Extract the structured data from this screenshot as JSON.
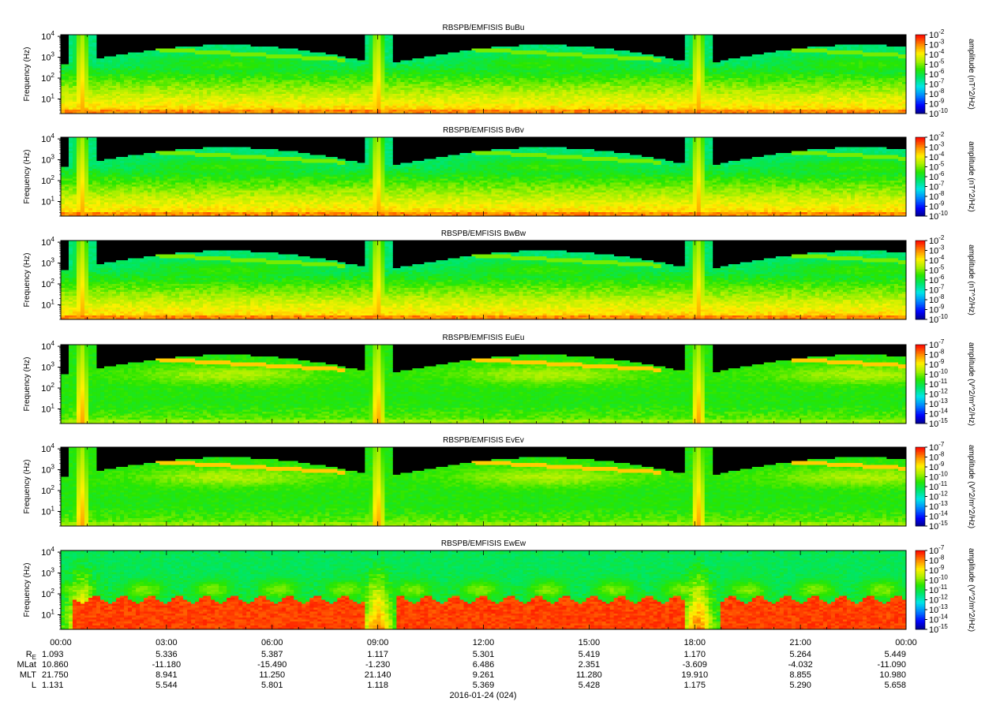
{
  "chart_data": [
    {
      "type": "heatmap",
      "title": "RBSPB/EMFISIS  BuBu",
      "ylabel": "Frequency (Hz)",
      "ytick_exponents": [
        1,
        2,
        3,
        4
      ],
      "ylim": [
        2,
        12000
      ],
      "yscale": "log",
      "colorbar_label": "amplitude (nT^2/Hz)",
      "colorbar_exponents": [
        -10,
        -9,
        -8,
        -7,
        -6,
        -5,
        -4,
        -3,
        -2
      ],
      "colormap": "rainbow",
      "kind": "magnetic"
    },
    {
      "type": "heatmap",
      "title": "RBSPB/EMFISIS  BvBv",
      "ylabel": "Frequency (Hz)",
      "ytick_exponents": [
        1,
        2,
        3,
        4
      ],
      "ylim": [
        2,
        12000
      ],
      "yscale": "log",
      "colorbar_label": "amplitude (nT^2/Hz)",
      "colorbar_exponents": [
        -10,
        -9,
        -8,
        -7,
        -6,
        -5,
        -4,
        -3,
        -2
      ],
      "colormap": "rainbow",
      "kind": "magnetic"
    },
    {
      "type": "heatmap",
      "title": "RBSPB/EMFISIS  BwBw",
      "ylabel": "Frequency (Hz)",
      "ytick_exponents": [
        1,
        2,
        3,
        4
      ],
      "ylim": [
        2,
        12000
      ],
      "yscale": "log",
      "colorbar_label": "amplitude (nT^2/Hz)",
      "colorbar_exponents": [
        -10,
        -9,
        -8,
        -7,
        -6,
        -5,
        -4,
        -3,
        -2
      ],
      "colormap": "rainbow",
      "kind": "magnetic"
    },
    {
      "type": "heatmap",
      "title": "RBSPB/EMFISIS  EuEu",
      "ylabel": "Frequency (Hz)",
      "ytick_exponents": [
        1,
        2,
        3,
        4
      ],
      "ylim": [
        2,
        12000
      ],
      "yscale": "log",
      "colorbar_label": "amplitude (V^2/m^2/Hz)",
      "colorbar_exponents": [
        -15,
        -14,
        -13,
        -12,
        -11,
        -10,
        -9,
        -8,
        -7
      ],
      "colormap": "rainbow",
      "kind": "electric"
    },
    {
      "type": "heatmap",
      "title": "RBSPB/EMFISIS  EvEv",
      "ylabel": "Frequency (Hz)",
      "ytick_exponents": [
        1,
        2,
        3,
        4
      ],
      "ylim": [
        2,
        12000
      ],
      "yscale": "log",
      "colorbar_label": "amplitude (V^2/m^2/Hz)",
      "colorbar_exponents": [
        -15,
        -14,
        -13,
        -12,
        -11,
        -10,
        -9,
        -8,
        -7
      ],
      "colormap": "rainbow",
      "kind": "electric"
    },
    {
      "type": "heatmap",
      "title": "RBSPB/EMFISIS  EwEw",
      "ylabel": "Frequency (Hz)",
      "ytick_exponents": [
        1,
        2,
        3,
        4
      ],
      "ylim": [
        2,
        12000
      ],
      "yscale": "log",
      "colorbar_label": "amplitude (V^2/m^2/Hz)",
      "colorbar_exponents": [
        -15,
        -14,
        -13,
        -12,
        -11,
        -10,
        -9,
        -8,
        -7
      ],
      "colormap": "rainbow",
      "kind": "electric_w"
    }
  ],
  "time_axis": {
    "tick_labels": [
      "00:00",
      "03:00",
      "06:00",
      "09:00",
      "12:00",
      "15:00",
      "18:00",
      "21:00",
      "00:00"
    ],
    "minor_ticks_per_major": 3,
    "date_label": "2016-01-24 (024)"
  },
  "ephemeris": {
    "rows": [
      {
        "label_main": "R",
        "label_sub": "E",
        "values": [
          "1.093",
          "5.336",
          "5.387",
          "1.117",
          "5.301",
          "5.419",
          "1.170",
          "5.264",
          "5.449"
        ]
      },
      {
        "label_main": "MLat",
        "label_sub": "",
        "values": [
          "10.860",
          "-11.180",
          "-15.490",
          "-1.230",
          "6.486",
          "2.351",
          "-3.609",
          "-4.032",
          "-11.090"
        ]
      },
      {
        "label_main": "MLT",
        "label_sub": "",
        "values": [
          "21.750",
          "8.941",
          "11.250",
          "21.140",
          "9.261",
          "11.280",
          "19.910",
          "8.855",
          "10.980"
        ]
      },
      {
        "label_main": "L",
        "label_sub": "",
        "values": [
          "1.131",
          "5.544",
          "5.801",
          "1.118",
          "5.369",
          "5.428",
          "1.175",
          "5.290",
          "5.658"
        ]
      }
    ]
  }
}
